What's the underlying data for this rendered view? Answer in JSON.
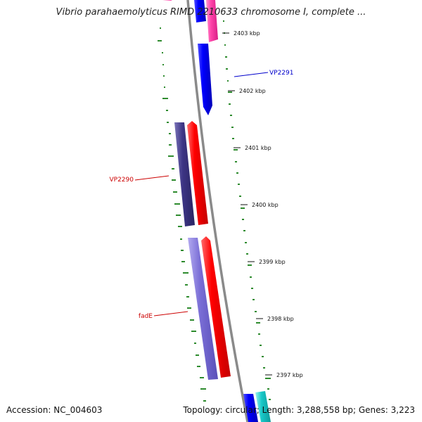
{
  "title": "Vibrio parahaemolyticus RIMD 2210633 chromosome I, complete ...",
  "footer": {
    "accession": "Accession: NC_004603",
    "summary": "Topology: circular; Length: 3,288,558 bp; Genes: 3,223"
  },
  "ticks": [
    {
      "label": "2403 kbp"
    },
    {
      "label": "2402 kbp"
    },
    {
      "label": "2401 kbp"
    },
    {
      "label": "2400 kbp"
    },
    {
      "label": "2399 kbp"
    },
    {
      "label": "2398 kbp"
    },
    {
      "label": "2397 kbp"
    }
  ],
  "gene_labels": [
    {
      "text": "VP2291",
      "color": "#0000cc"
    },
    {
      "text": "VP2290",
      "color": "#cc0000"
    },
    {
      "text": "fadE",
      "color": "#cc0000"
    }
  ],
  "colors": {
    "backbone": "#8a8a8a",
    "gc_skew": "#2e8b2e",
    "cds_forward": "#ff0000",
    "cds_reverse": "#0000ff",
    "blast_hit_dark": "#3d3585",
    "blast_hit_light": "#7a6ed6",
    "rna": "#ff44aa",
    "cyan_feature": "#18c8c8"
  }
}
